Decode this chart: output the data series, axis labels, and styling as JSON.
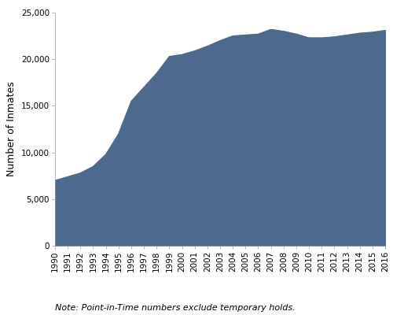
{
  "years": [
    1990,
    1991,
    1992,
    1993,
    1994,
    1995,
    1996,
    1997,
    1998,
    1999,
    2000,
    2001,
    2002,
    2003,
    2004,
    2005,
    2006,
    2007,
    2008,
    2009,
    2010,
    2011,
    2012,
    2013,
    2014,
    2015,
    2016
  ],
  "values": [
    7000,
    7400,
    7800,
    8500,
    9800,
    12000,
    15500,
    17000,
    18500,
    20300,
    20500,
    20900,
    21400,
    22000,
    22500,
    22600,
    22700,
    23200,
    23000,
    22700,
    22300,
    22300,
    22400,
    22600,
    22800,
    22900,
    23100
  ],
  "fill_color": "#4d6a8e",
  "line_color": "#4d6a8e",
  "ylabel": "Number of Inmates",
  "ylim": [
    0,
    25000
  ],
  "yticks": [
    0,
    5000,
    10000,
    15000,
    20000,
    25000
  ],
  "note": "Note: Point-in-Time numbers exclude temporary holds.",
  "background_color": "#ffffff",
  "note_fontsize": 8,
  "ylabel_fontsize": 9,
  "tick_fontsize": 7.5
}
